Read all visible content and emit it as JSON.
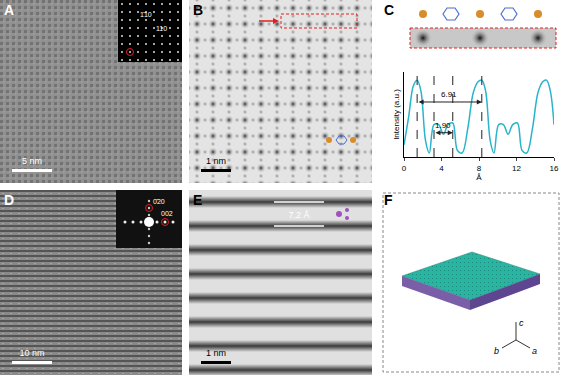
{
  "panels": {
    "A": {
      "label": "A",
      "scale_bar": "5 nm",
      "inset_labels": [
        "1̄10",
        "110"
      ]
    },
    "B": {
      "label": "B",
      "scale_bar": "1 nm"
    },
    "C": {
      "label": "C"
    },
    "D": {
      "label": "D",
      "scale_bar": "10 nm",
      "inset_labels": [
        "0̄20",
        "002"
      ]
    },
    "E": {
      "label": "E",
      "scale_bar": "1 nm",
      "spacing_label": "7.2 Å"
    },
    "F": {
      "label": "F",
      "axes": [
        "c",
        "b",
        "a"
      ]
    }
  },
  "chart_data": {
    "type": "line",
    "x": [
      0,
      0.5,
      1.0,
      1.4,
      1.8,
      2.3,
      2.7,
      3.2,
      3.7,
      4.2,
      4.7,
      5.2,
      5.7,
      6.2,
      6.8,
      7.4,
      7.9,
      8.3,
      8.7,
      9.2,
      9.6,
      10.1,
      10.6,
      11.1,
      11.6,
      12.1,
      12.6,
      13.1,
      13.7,
      14.3,
      14.8,
      15.2,
      15.6,
      16
    ],
    "values": [
      0.15,
      0.5,
      0.88,
      0.95,
      0.82,
      0.2,
      0.05,
      0.4,
      0.4,
      0.28,
      0.4,
      0.42,
      0.08,
      0.05,
      0.35,
      0.8,
      0.93,
      0.95,
      0.82,
      0.2,
      0.05,
      0.4,
      0.4,
      0.28,
      0.4,
      0.42,
      0.08,
      0.05,
      0.35,
      0.8,
      0.93,
      0.95,
      0.82,
      0.4
    ],
    "color": "#29b3cc",
    "xlim": [
      0,
      16
    ],
    "xticks": [
      0,
      4,
      8,
      12,
      16
    ],
    "ylim": [
      0,
      1.05
    ],
    "xlabel": "Å",
    "ylabel": "Intensity (a.u.)",
    "tick_labels": "x",
    "annotations": [
      {
        "text": "6.91",
        "x0": 1.4,
        "x1": 8.3,
        "y": 0.68
      },
      {
        "text": "1.90",
        "x0": 3.2,
        "x1": 5.2,
        "y": 0.3
      }
    ]
  }
}
